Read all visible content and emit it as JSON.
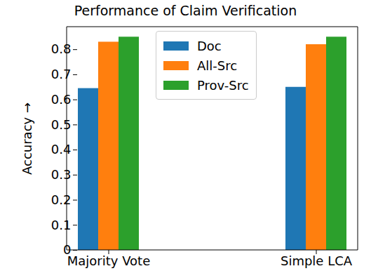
{
  "chart_data": {
    "type": "bar",
    "title": "Performance of Claim Verification",
    "y_label": "Accuracy",
    "categories": [
      "Majority Vote",
      "Simple LCA"
    ],
    "series": [
      {
        "name": "Doc",
        "color": "#1f77b4",
        "values": [
          0.645,
          0.65
        ]
      },
      {
        "name": "All-Src",
        "color": "#ff7f0e",
        "values": [
          0.83,
          0.82
        ]
      },
      {
        "name": "Prov-Src",
        "color": "#2ca02c",
        "values": [
          0.85,
          0.85
        ]
      }
    ],
    "ylim": [
      0,
      0.89
    ],
    "yticks": [
      0,
      0.1,
      0.2,
      0.3,
      0.4,
      0.5,
      0.6,
      0.7,
      0.8
    ],
    "legend": "upper center",
    "grid": false
  }
}
